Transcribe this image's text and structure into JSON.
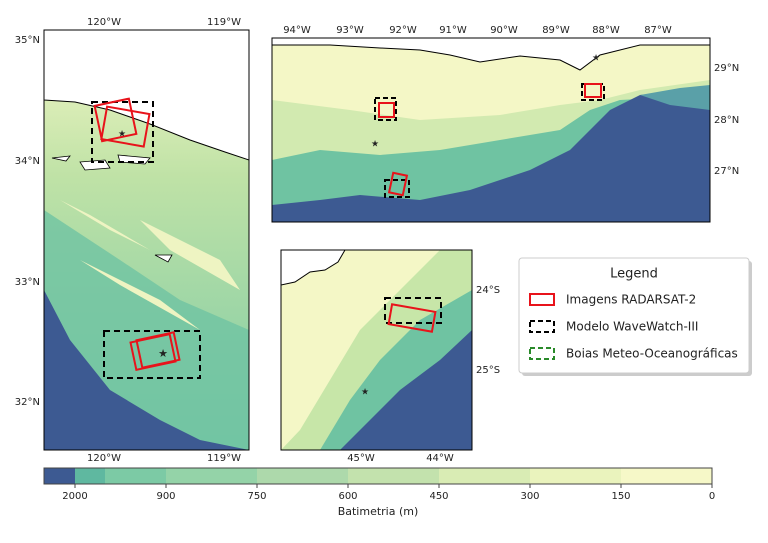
{
  "maps": [
    {
      "top_labels": [
        "120°W",
        "119°W"
      ],
      "bottom_labels": [
        "120°W",
        "119°W"
      ],
      "left_labels": [
        "35°N",
        "34°N",
        "33°N",
        "32°N"
      ]
    },
    {
      "top_labels": [
        "94°W",
        "93°W",
        "92°W",
        "91°W",
        "90°W",
        "89°W",
        "88°W",
        "87°W"
      ],
      "right_labels": [
        "29°N",
        "28°N",
        "27°N"
      ]
    },
    {
      "right_labels": [
        "24°S",
        "25°S"
      ],
      "bottom_labels": [
        "45°W",
        "44°W"
      ]
    }
  ],
  "legend": {
    "title": "Legend",
    "entries": [
      "Imagens RADARSAT-2",
      "Modelo WaveWatch-III",
      "Boias Meteo-Oceanográficas"
    ]
  },
  "colorbar": {
    "label": "Batimetria (m)",
    "ticks": [
      2000,
      900,
      750,
      600,
      450,
      300,
      150,
      0
    ]
  }
}
